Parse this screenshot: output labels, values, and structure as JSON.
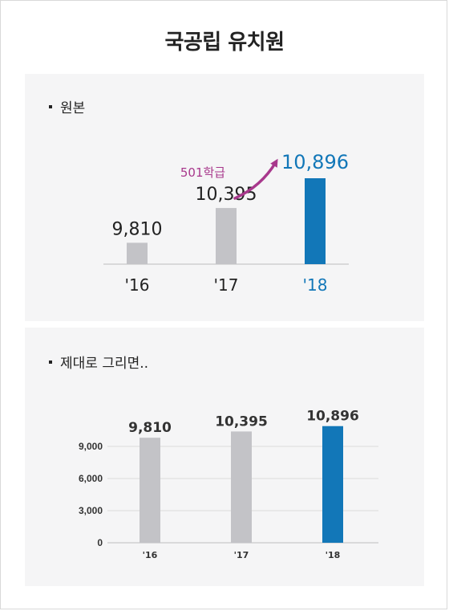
{
  "title": "국공립 유치원",
  "colors": {
    "gray_bar": "#c3c3c7",
    "highlight_bar": "#1277b8",
    "arrow": "#a8388c",
    "grid": "#dadada"
  },
  "chart_data": [
    {
      "type": "bar",
      "panel_label": "원본",
      "categories": [
        "'16",
        "'17",
        "'18"
      ],
      "values": [
        9810,
        10395,
        10896
      ],
      "value_labels": [
        "9,810",
        "10,395",
        "10,896"
      ],
      "highlight_index": 2,
      "annotation": "501학급",
      "ylim_note": "truncated axis"
    },
    {
      "type": "bar",
      "panel_label": "제대로 그리면..",
      "categories": [
        "'16",
        "'17",
        "'18"
      ],
      "values": [
        9810,
        10395,
        10896
      ],
      "value_labels": [
        "9,810",
        "10,395",
        "10,896"
      ],
      "highlight_index": 2,
      "ylim": [
        0,
        11000
      ],
      "yticks": [
        0,
        3000,
        6000,
        9000
      ],
      "ytick_labels": [
        "0",
        "3,000",
        "6,000",
        "9,000"
      ],
      "grid": true
    }
  ]
}
